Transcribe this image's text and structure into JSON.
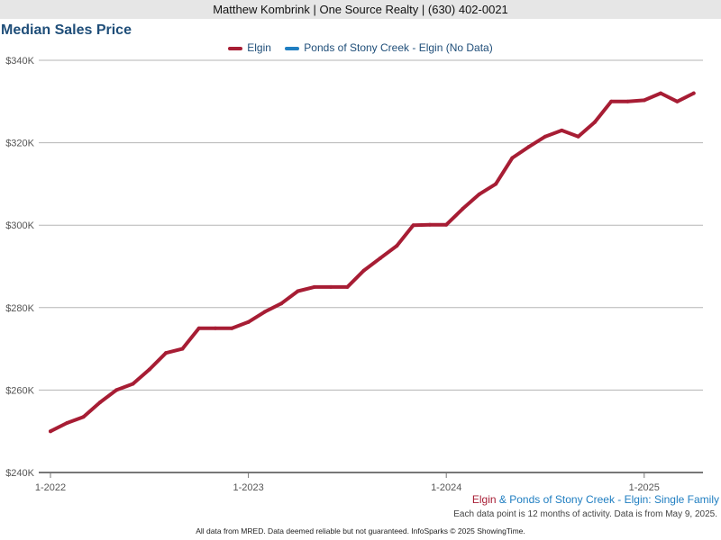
{
  "header": {
    "agent_line": "Matthew Kombrink | One Source Realty | (630) 402-0021"
  },
  "chart_data": {
    "type": "line",
    "title": "Median Sales Price",
    "xlabel": "",
    "ylabel": "",
    "ylim": [
      240000,
      340000
    ],
    "yticks": [
      240000,
      260000,
      280000,
      300000,
      320000,
      340000
    ],
    "ytick_labels": [
      "$240K",
      "$260K",
      "$280K",
      "$300K",
      "$320K",
      "$340K"
    ],
    "xticks": [
      "1-2022",
      "1-2023",
      "1-2024",
      "1-2025"
    ],
    "grid": true,
    "legend_position": "top-center",
    "series": [
      {
        "name": "Elgin",
        "color": "#a71d34",
        "x": [
          "1-2022",
          "2-2022",
          "3-2022",
          "4-2022",
          "5-2022",
          "6-2022",
          "7-2022",
          "8-2022",
          "9-2022",
          "10-2022",
          "11-2022",
          "12-2022",
          "1-2023",
          "2-2023",
          "3-2023",
          "4-2023",
          "5-2023",
          "6-2023",
          "7-2023",
          "8-2023",
          "9-2023",
          "10-2023",
          "11-2023",
          "12-2023",
          "1-2024",
          "2-2024",
          "3-2024",
          "4-2024",
          "5-2024",
          "6-2024",
          "7-2024",
          "8-2024",
          "9-2024",
          "10-2024",
          "11-2024",
          "12-2024",
          "1-2025",
          "2-2025",
          "3-2025",
          "4-2025"
        ],
        "values": [
          250000,
          252000,
          253500,
          257000,
          260000,
          261500,
          265000,
          269000,
          270000,
          275000,
          275000,
          275000,
          276500,
          279000,
          281000,
          284000,
          285000,
          285000,
          285000,
          289000,
          292000,
          295000,
          300000,
          300100,
          300100,
          304000,
          307500,
          310000,
          316300,
          319000,
          321500,
          323000,
          321500,
          325000,
          330000,
          330000,
          330300,
          332000,
          330000,
          332000
        ]
      },
      {
        "name": "Ponds of Stony Creek - Elgin (No Data)",
        "color": "#1f7ec1",
        "x": [],
        "values": []
      }
    ]
  },
  "subtitle": {
    "part1": "Elgin",
    "part2": " & Ponds of Stony Creek - Elgin: Single Family",
    "color1": "#a71d34",
    "color2": "#1f7ec1"
  },
  "note": "Each data point is 12 months of activity. Data is from May 9, 2025.",
  "footer": "All data from MRED. Data deemed reliable but not guaranteed. InfoSparks © 2025 ShowingTime."
}
